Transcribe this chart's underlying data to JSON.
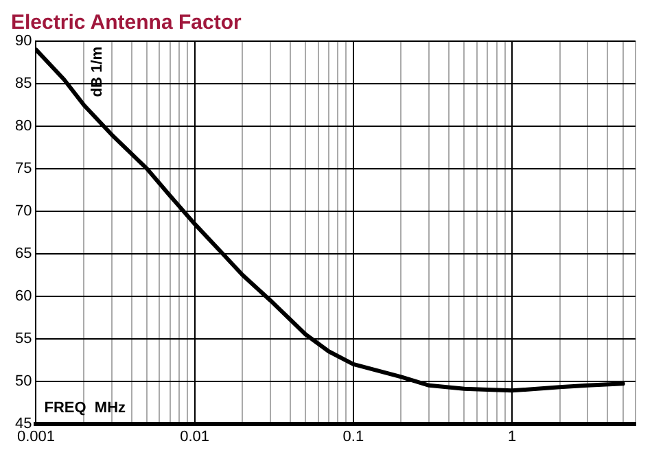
{
  "chart_data": {
    "type": "line",
    "title": "Electric Antenna Factor",
    "xlabel": "FREQ  MHz",
    "ylabel": "dB 1/m",
    "log": "x",
    "grid": true,
    "marker": "none",
    "line_style": "solid",
    "legend": false,
    "x": [
      0.001,
      0.0015,
      0.002,
      0.003,
      0.005,
      0.007,
      0.01,
      0.015,
      0.02,
      0.03,
      0.05,
      0.07,
      0.1,
      0.2,
      0.3,
      0.5,
      0.7,
      1,
      2,
      3,
      5
    ],
    "series": [
      {
        "color": "#000000",
        "values": [
          89,
          85.5,
          82.5,
          79,
          75,
          71.8,
          68.5,
          65,
          62.5,
          59.5,
          55.5,
          53.5,
          52,
          50.5,
          49.5,
          49.1,
          49,
          48.9,
          49.3,
          49.5,
          49.7
        ]
      }
    ],
    "xlim": [
      0.001,
      6
    ],
    "ylim": [
      45,
      90
    ],
    "yticks": [
      45,
      50,
      55,
      60,
      65,
      70,
      75,
      80,
      85,
      90
    ],
    "xticks": [
      0.001,
      {
        "value": 0.002,
        "label": null
      },
      {
        "value": 0.003,
        "label": null
      },
      {
        "value": 0.004,
        "label": null
      },
      {
        "value": 0.005,
        "label": null
      },
      {
        "value": 0.006,
        "label": null
      },
      {
        "value": 0.007,
        "label": null
      },
      {
        "value": 0.008,
        "label": null
      },
      {
        "value": 0.009,
        "label": null
      },
      0.01,
      {
        "value": 0.02,
        "label": null
      },
      {
        "value": 0.03,
        "label": null
      },
      {
        "value": 0.04,
        "label": null
      },
      {
        "value": 0.05,
        "label": null
      },
      {
        "value": 0.06,
        "label": null
      },
      {
        "value": 0.07,
        "label": null
      },
      {
        "value": 0.08,
        "label": null
      },
      {
        "value": 0.09,
        "label": null
      },
      0.1,
      {
        "value": 0.2,
        "label": null
      },
      {
        "value": 0.3,
        "label": null
      },
      {
        "value": 0.4,
        "label": null
      },
      {
        "value": 0.5,
        "label": null
      },
      {
        "value": 0.6,
        "label": null
      },
      {
        "value": 0.7,
        "label": null
      },
      {
        "value": 0.8,
        "label": null
      },
      {
        "value": 0.9,
        "label": null
      },
      1,
      {
        "value": 2,
        "label": null
      },
      {
        "value": 3,
        "label": null
      },
      {
        "value": 4,
        "label": null
      },
      {
        "value": 5,
        "label": null
      },
      {
        "value": 6,
        "label": null
      }
    ]
  }
}
